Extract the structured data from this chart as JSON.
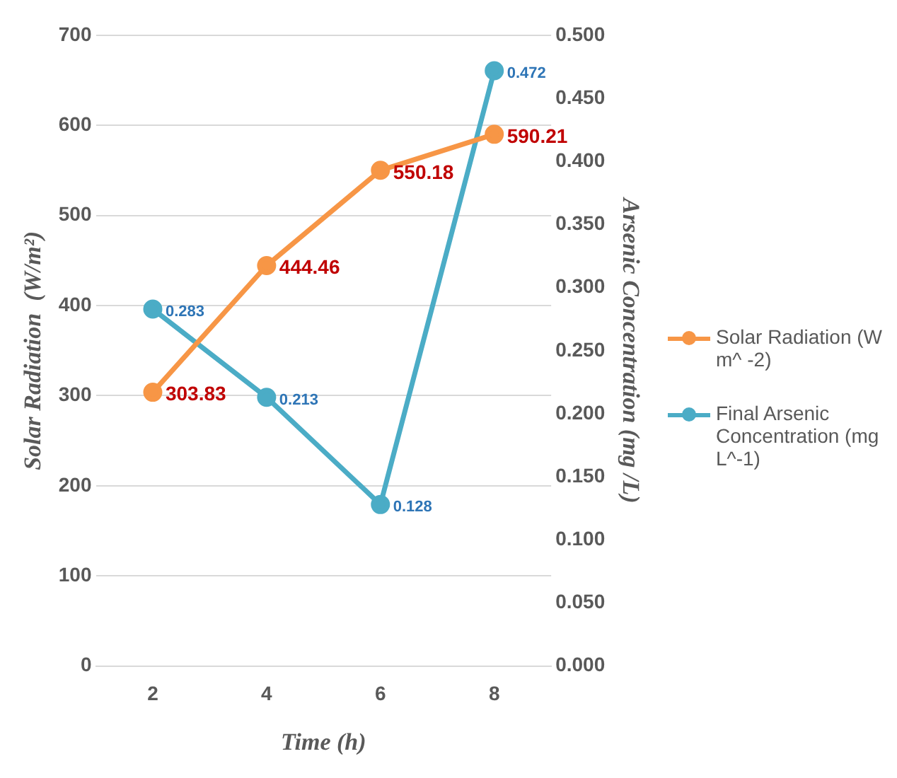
{
  "chart_data": {
    "type": "line",
    "xlabel": "Time (h)",
    "ylabel": "Solar Radiation  (W/m²)",
    "y2label": "Arsenic Concentration (mg /L)",
    "categories": [
      "2",
      "4",
      "6",
      "8"
    ],
    "series": [
      {
        "name": "Solar Radiation (W m^ -2)",
        "color": "#f79646",
        "values": [
          303.83,
          444.46,
          550.18,
          590.21
        ]
      },
      {
        "name": "Final Arsenic Concentration (mg L^-1)",
        "color": "#4bacc6",
        "axis": "y2",
        "values": [
          0.283,
          0.213,
          0.128,
          0.472
        ]
      }
    ],
    "ylim": [
      0,
      700
    ],
    "yticks": [
      0,
      100,
      200,
      300,
      400,
      500,
      600,
      700
    ],
    "y2lim": [
      0,
      0.5
    ],
    "y2ticks": [
      {
        "value": 0,
        "label": "0.000"
      },
      {
        "value": 0.05,
        "label": "0.050"
      },
      {
        "value": 0.1,
        "label": "0.100"
      },
      {
        "value": 0.15,
        "label": "0.150"
      },
      {
        "value": 0.2,
        "label": "0.200"
      },
      {
        "value": 0.25,
        "label": "0.250"
      },
      {
        "value": 0.3,
        "label": "0.300"
      },
      {
        "value": 0.35,
        "label": "0.350"
      },
      {
        "value": 0.4,
        "label": "0.400"
      },
      {
        "value": 0.45,
        "label": "0.450"
      },
      {
        "value": 0.5,
        "label": "0.500"
      }
    ],
    "grid": "y",
    "legend": "right",
    "marker": "circle",
    "line_style": "solid",
    "data_labels": true
  }
}
